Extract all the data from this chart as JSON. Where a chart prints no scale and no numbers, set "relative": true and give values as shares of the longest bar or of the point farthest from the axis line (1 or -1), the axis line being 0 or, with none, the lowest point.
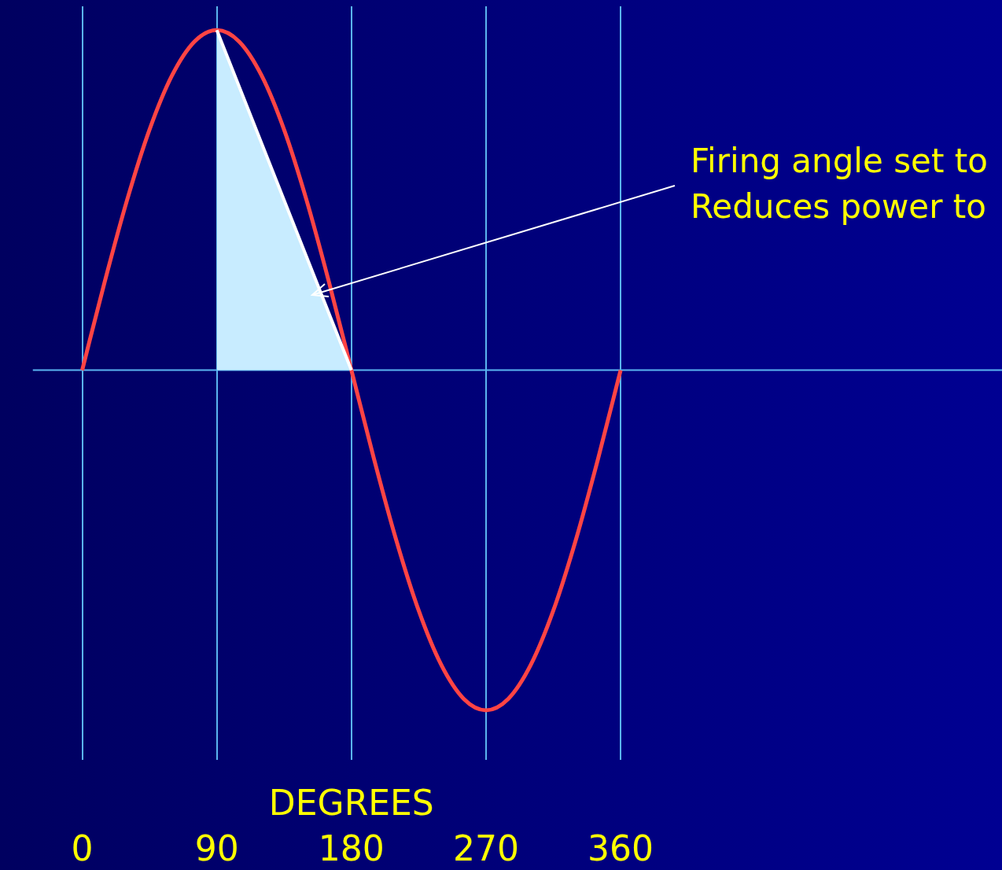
{
  "chart_data": {
    "type": "line",
    "relative": true,
    "xlabel": "DEGREES",
    "xlim": [
      -33,
      615
    ],
    "xticks": [
      0,
      90,
      180,
      270,
      360
    ],
    "grid": "x",
    "legend": false,
    "annotations": [
      "Firing angle set to",
      "Reduces power to"
    ],
    "series": [
      {
        "type": "area",
        "color": "#c8ecff",
        "x": [
          90,
          180
        ],
        "values": [
          1,
          0
        ]
      },
      {
        "color": "#ff4444",
        "x": [
          0,
          15,
          30,
          45,
          60,
          75,
          90,
          105,
          120,
          135,
          150,
          165,
          180,
          195,
          210,
          225,
          240,
          255,
          270,
          285,
          300,
          315,
          330,
          345,
          360
        ],
        "values": [
          0,
          0.259,
          0.5,
          0.707,
          0.866,
          0.966,
          1,
          0.966,
          0.866,
          0.707,
          0.5,
          0.259,
          0,
          -0.259,
          -0.5,
          -0.707,
          -0.866,
          -0.966,
          -1,
          -0.966,
          -0.866,
          -0.707,
          -0.5,
          -0.259,
          0
        ]
      }
    ]
  }
}
